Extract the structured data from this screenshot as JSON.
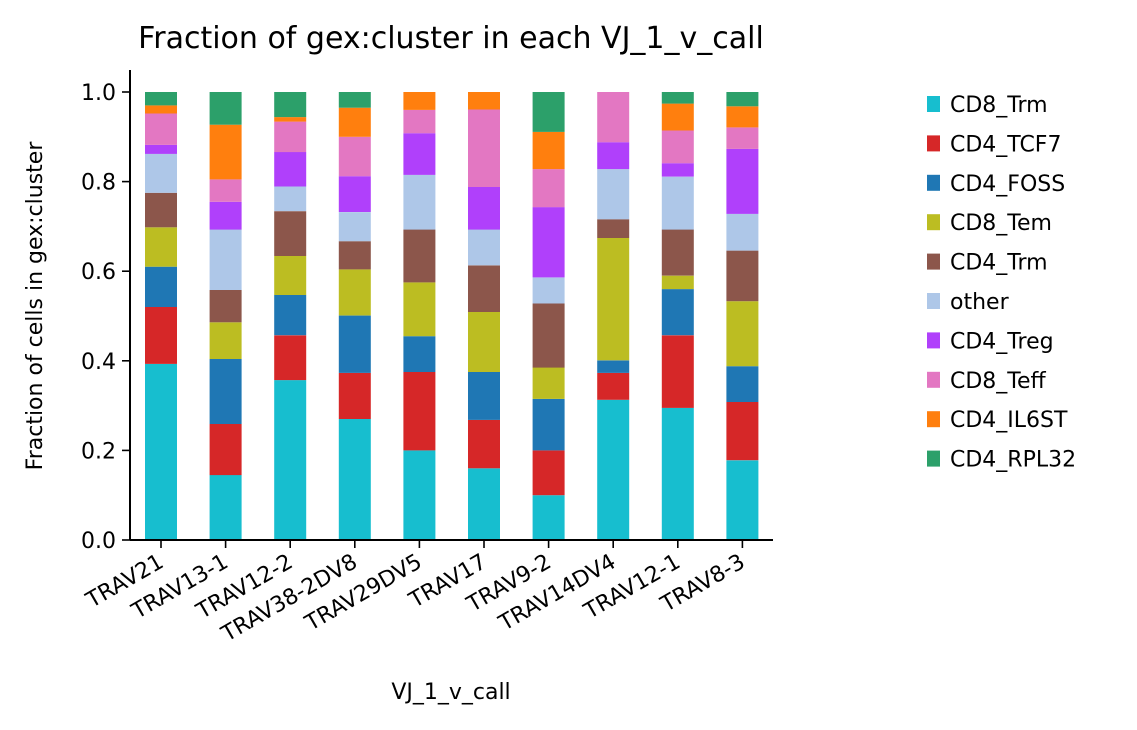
{
  "chart_data": {
    "type": "bar",
    "stacked": true,
    "title": "Fraction of gex:cluster in each VJ_1_v_call",
    "xlabel": "VJ_1_v_call",
    "ylabel": "Fraction of cells in gex:cluster",
    "ylim": [
      0,
      1.05
    ],
    "yticks": [
      "0.0",
      "0.2",
      "0.4",
      "0.6",
      "0.8",
      "1.0"
    ],
    "ytick_values": [
      0,
      0.2,
      0.4,
      0.6,
      0.8,
      1.0
    ],
    "categories": [
      "TRAV21",
      "TRAV13-1",
      "TRAV12-2",
      "TRAV38-2DV8",
      "TRAV29DV5",
      "TRAV17",
      "TRAV9-2",
      "TRAV14DV4",
      "TRAV12-1",
      "TRAV8-3"
    ],
    "legend_position": "right",
    "grid": false,
    "series": [
      {
        "name": "CD8_Trm",
        "color": "#17becf",
        "values": [
          0.393,
          0.145,
          0.357,
          0.27,
          0.2,
          0.16,
          0.1,
          0.313,
          0.295,
          0.178
        ]
      },
      {
        "name": "CD4_TCF7",
        "color": "#d62728",
        "values": [
          0.127,
          0.114,
          0.1,
          0.103,
          0.175,
          0.108,
          0.1,
          0.06,
          0.162,
          0.13
        ]
      },
      {
        "name": "CD4_FOSS",
        "color": "#1f77b4",
        "values": [
          0.09,
          0.145,
          0.09,
          0.128,
          0.08,
          0.107,
          0.115,
          0.028,
          0.103,
          0.08
        ]
      },
      {
        "name": "CD8_Tem",
        "color": "#bcbd22",
        "values": [
          0.088,
          0.082,
          0.087,
          0.103,
          0.12,
          0.134,
          0.07,
          0.273,
          0.03,
          0.145
        ]
      },
      {
        "name": "CD4_Trm",
        "color": "#8c564b",
        "values": [
          0.077,
          0.072,
          0.1,
          0.063,
          0.118,
          0.104,
          0.143,
          0.042,
          0.103,
          0.113
        ]
      },
      {
        "name": "other",
        "color": "#aec7e8",
        "values": [
          0.087,
          0.135,
          0.055,
          0.065,
          0.122,
          0.08,
          0.058,
          0.112,
          0.118,
          0.082
        ]
      },
      {
        "name": "CD4_Treg",
        "color": "#b040fb",
        "values": [
          0.02,
          0.062,
          0.077,
          0.08,
          0.093,
          0.095,
          0.157,
          0.06,
          0.03,
          0.145
        ]
      },
      {
        "name": "CD8_Teff",
        "color": "#e377c2",
        "values": [
          0.07,
          0.05,
          0.068,
          0.088,
          0.052,
          0.173,
          0.085,
          0.112,
          0.073,
          0.048
        ]
      },
      {
        "name": "CD4_IL6ST",
        "color": "#ff7f0e",
        "values": [
          0.018,
          0.122,
          0.01,
          0.065,
          0.04,
          0.039,
          0.083,
          0.0,
          0.06,
          0.047
        ]
      },
      {
        "name": "CD4_RPL32",
        "color": "#2ca06a",
        "values": [
          0.03,
          0.073,
          0.056,
          0.035,
          0.0,
          0.0,
          0.089,
          0.0,
          0.026,
          0.032
        ]
      }
    ]
  }
}
